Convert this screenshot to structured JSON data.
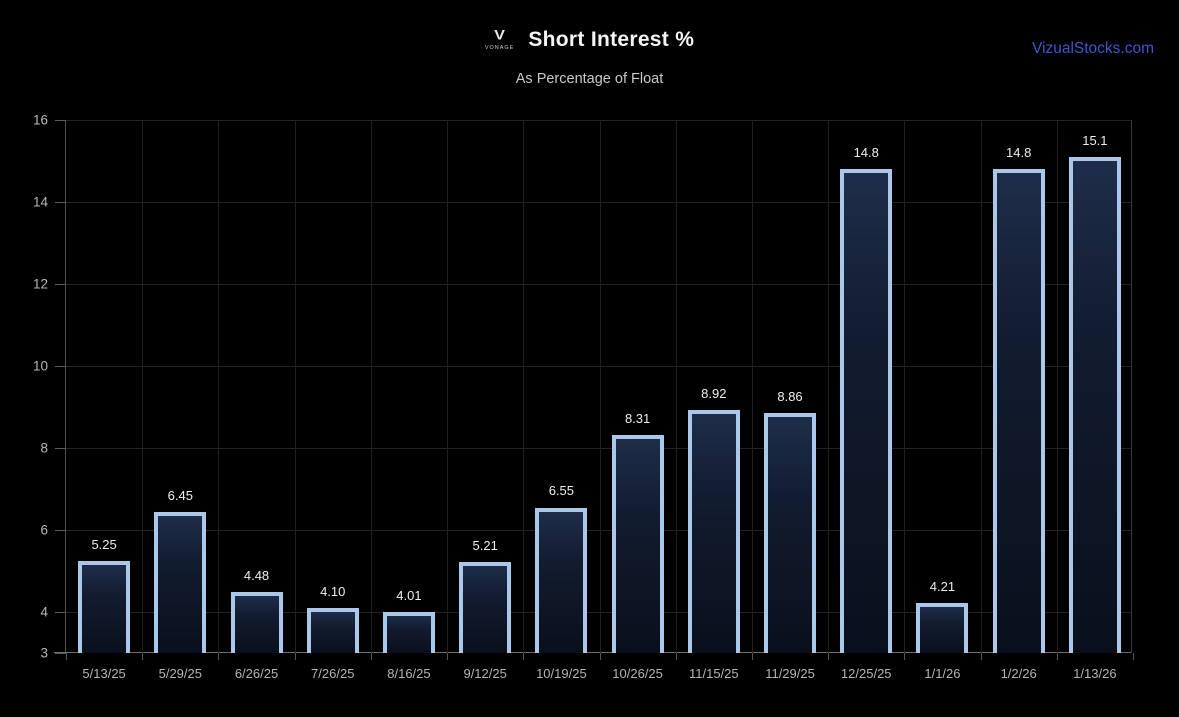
{
  "header": {
    "logo_v": "V",
    "logo_word": "VONAGE",
    "title": "Short Interest %",
    "subtitle": "As Percentage of Float",
    "site_link": "VizualStocks.com"
  },
  "chart_data": {
    "type": "bar",
    "title": "Short Interest %",
    "subtitle": "As Percentage of Float",
    "xlabel": "",
    "ylabel": "",
    "categories": [
      "5/13/25",
      "5/29/25",
      "6/26/25",
      "7/26/25",
      "8/16/25",
      "9/12/25",
      "10/19/25",
      "10/26/25",
      "11/15/25",
      "11/29/25",
      "12/25/25",
      "1/1/26",
      "1/2/26",
      "1/13/26"
    ],
    "values": [
      5.25,
      6.45,
      4.48,
      4.1,
      4.01,
      5.21,
      6.55,
      8.31,
      8.92,
      8.86,
      14.8,
      4.21,
      14.8,
      15.1
    ],
    "value_labels": [
      "5.25",
      "6.45",
      "4.48",
      "4.10",
      "4.01",
      "5.21",
      "6.55",
      "8.31",
      "8.92",
      "8.86",
      "14.8",
      "4.21",
      "14.8",
      "15.1"
    ],
    "ylim": [
      3,
      16
    ],
    "yticks": [
      3,
      4,
      6,
      8,
      10,
      12,
      14,
      16
    ],
    "h_gridlines": [
      4,
      6,
      8,
      10,
      12,
      14,
      16
    ],
    "grid": true,
    "legend": "none",
    "colors": {
      "background": "#000000",
      "bar_border": "#a9c8ea",
      "bar_fill_top": "#1e2d4a",
      "bar_fill_bottom": "#0a0f1b",
      "gridline": "#242424",
      "axis_line": "#6e6e6e",
      "tick_label": "#b8b8b8",
      "value_label": "#efefef",
      "title": "#f5f5f5",
      "subtitle": "#c9c9c9",
      "link": "#4354cd"
    }
  }
}
